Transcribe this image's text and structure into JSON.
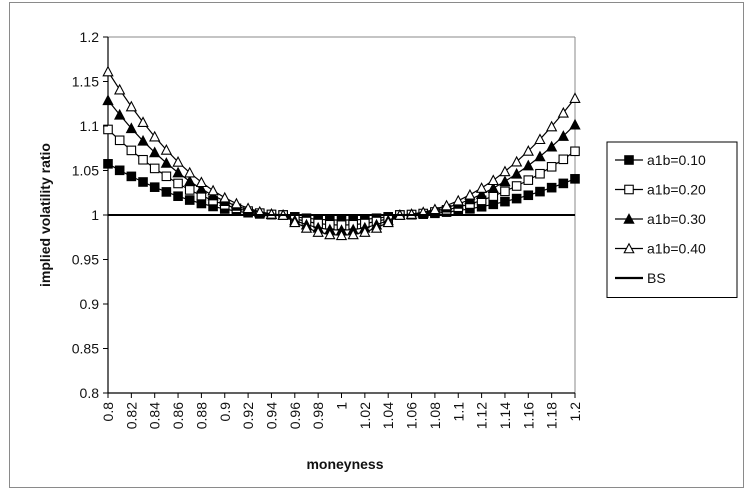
{
  "chart_data": {
    "type": "line",
    "title": "",
    "xlabel": "moneyness",
    "ylabel": "implied volatility ratio",
    "xlim": [
      0.8,
      1.2
    ],
    "ylim": [
      0.8,
      1.2
    ],
    "x_ticks": [
      "0.8",
      "0.82",
      "0.84",
      "0.86",
      "0.88",
      "0.9",
      "0.92",
      "0.94",
      "0.96",
      "0.98",
      "1",
      "1.02",
      "1.04",
      "1.06",
      "1.08",
      "1.1",
      "1.12",
      "1.14",
      "1.16",
      "1.18",
      "1.2"
    ],
    "y_ticks": [
      "0.8",
      "0.85",
      "0.9",
      "0.95",
      "1",
      "1.05",
      "1.1",
      "1.15",
      "1.2"
    ],
    "grid": false,
    "legend_position": "right",
    "series": [
      {
        "name": "a1b=0.10",
        "marker": "square-filled",
        "color": "#000000",
        "ref": 0.9943,
        "k_left": 2.48,
        "k_right": 1.73
      },
      {
        "name": "a1b=0.20",
        "marker": "square-open",
        "color": "#000000",
        "ref": 0.9886,
        "k_left": 4.12,
        "k_right": 3.03
      },
      {
        "name": "a1b=0.30",
        "marker": "triangle-filled",
        "color": "#000000",
        "ref": 0.9829,
        "k_left": 5.5,
        "k_right": 4.28
      },
      {
        "name": "a1b=0.40",
        "marker": "triangle-open",
        "color": "#000000",
        "ref": 0.9772,
        "k_left": 6.86,
        "k_right": 5.53
      },
      {
        "name": "BS",
        "marker": "none",
        "color": "#000000",
        "constant": 1.0
      }
    ]
  }
}
